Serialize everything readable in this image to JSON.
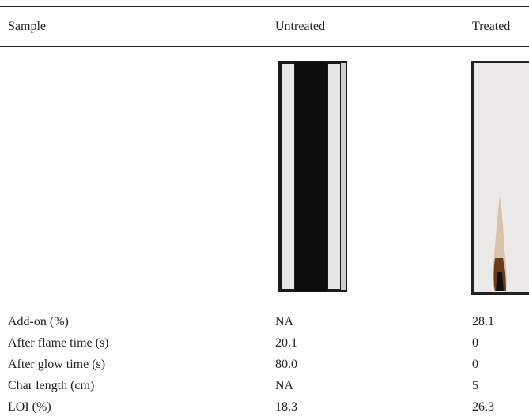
{
  "table": {
    "header": [
      "Sample",
      "Untreated",
      "Treated"
    ],
    "rows": [
      [
        "Add-on (%)",
        "NA",
        "28.1"
      ],
      [
        "After flame time (s)",
        "20.1",
        "0"
      ],
      [
        "After glow time (s)",
        "80.0",
        "0"
      ],
      [
        "Char length (cm)",
        "NA",
        "5"
      ],
      [
        "LOI (%)",
        "18.3",
        "26.3"
      ]
    ]
  }
}
